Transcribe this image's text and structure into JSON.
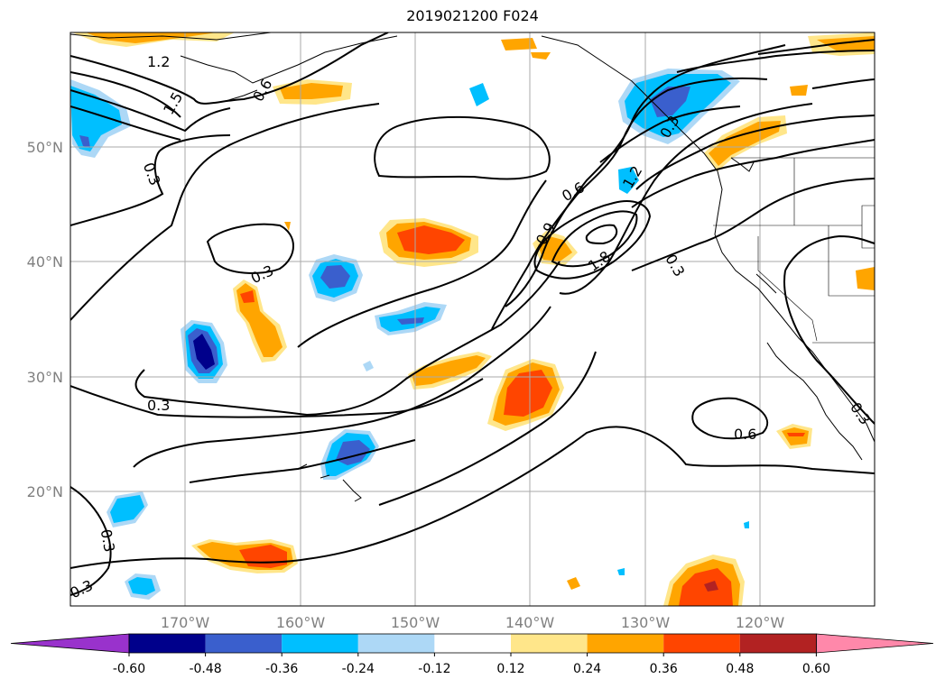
{
  "title": "2019021200 F024",
  "map": {
    "lat_labels": [
      "50°N",
      "40°N",
      "30°N",
      "20°N"
    ],
    "lon_labels": [
      "170°W",
      "160°W",
      "150°W",
      "140°W",
      "130°W",
      "120°W"
    ],
    "contour_labels": [
      "1.2",
      "1.5",
      "0.6",
      "0.3",
      "0.6",
      "1.2",
      "0.9",
      "1.8",
      "0.3",
      "0.3",
      "0.3",
      "0.3",
      "0.6",
      "0.3",
      "0.3",
      "0.3"
    ]
  },
  "colorbar": {
    "ticks": [
      "-0.60",
      "-0.48",
      "-0.36",
      "-0.24",
      "-0.12",
      "0.12",
      "0.24",
      "0.36",
      "0.48",
      "0.60"
    ],
    "colors": [
      "#9932cc",
      "#00008b",
      "#3a5fcd",
      "#00bfff",
      "#add8f6",
      "#ffffff",
      "#ffe68a",
      "#ffa500",
      "#ff4500",
      "#b22222",
      "#ff88aa"
    ]
  }
}
